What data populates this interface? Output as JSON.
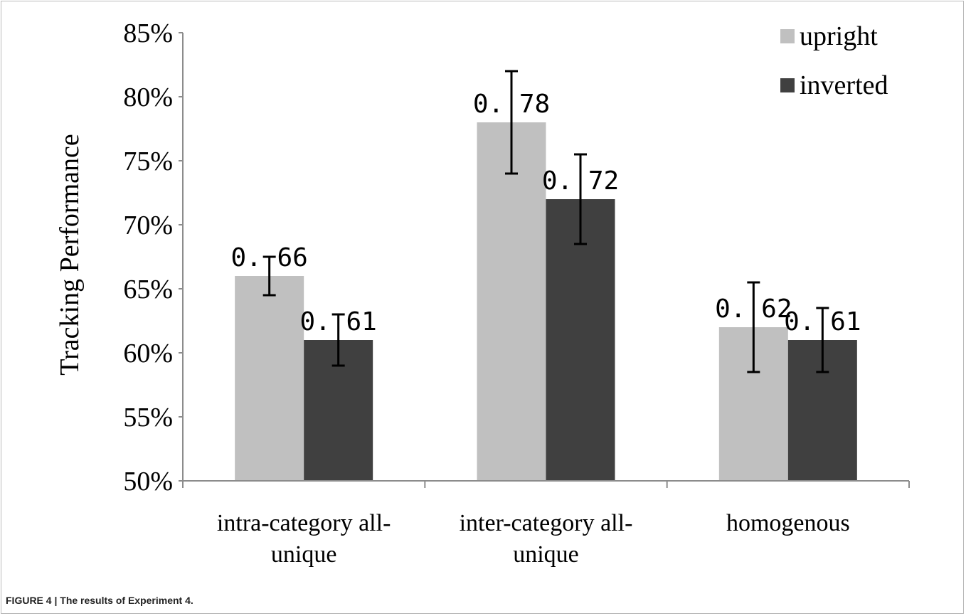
{
  "caption": "FIGURE 4 | The results of Experiment 4.",
  "chart_data": {
    "type": "bar",
    "title": "",
    "xlabel": "",
    "ylabel": "Tracking Performance",
    "ylim": [
      0.5,
      0.85
    ],
    "yticks": [
      "50%",
      "55%",
      "60%",
      "65%",
      "70%",
      "75%",
      "80%",
      "85%"
    ],
    "ytick_values": [
      0.5,
      0.55,
      0.6,
      0.65,
      0.7,
      0.75,
      0.8,
      0.85
    ],
    "categories": [
      [
        "intra-category all-",
        "unique"
      ],
      [
        "inter-category all-",
        "unique"
      ],
      [
        "homogenous"
      ]
    ],
    "series": [
      {
        "name": "upright",
        "color": "#c0c0c0",
        "values": [
          0.66,
          0.78,
          0.62
        ],
        "labels": [
          "0. 66",
          "0. 78",
          "0. 62"
        ],
        "error_low": [
          0.645,
          0.74,
          0.585
        ],
        "error_high": [
          0.675,
          0.82,
          0.655
        ]
      },
      {
        "name": "inverted",
        "color": "#404040",
        "values": [
          0.61,
          0.72,
          0.61
        ],
        "labels": [
          "0. 61",
          "0. 72",
          "0. 61"
        ],
        "error_low": [
          0.59,
          0.685,
          0.585
        ],
        "error_high": [
          0.63,
          0.755,
          0.635
        ]
      }
    ],
    "legend_position": "top-right",
    "grid": false
  }
}
